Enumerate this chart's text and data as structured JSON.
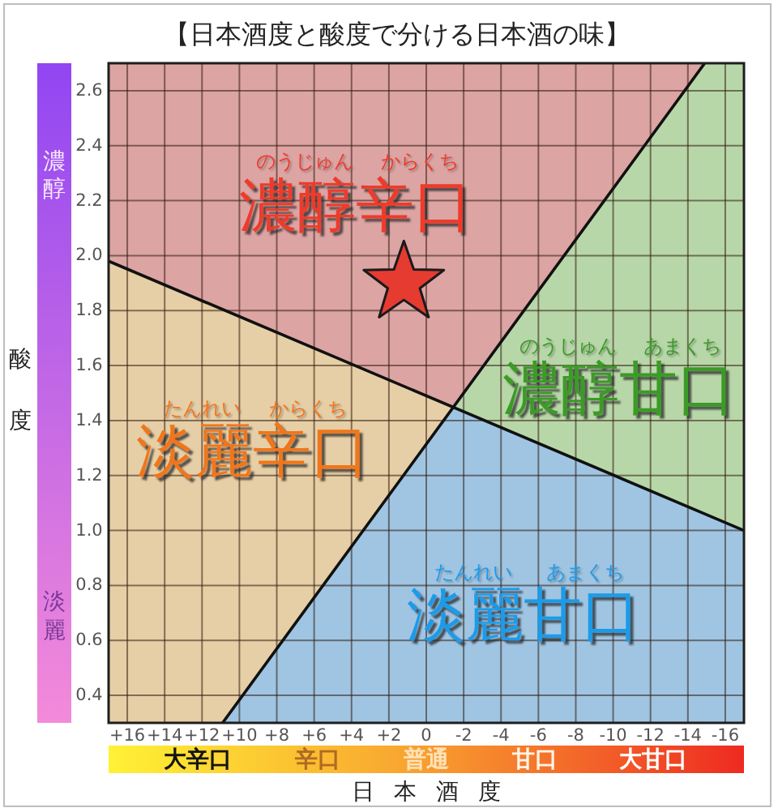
{
  "chart_data": {
    "type": "line",
    "title": "【日本酒度と酸度で分ける日本酒の味】",
    "xlabel": "日本酒度",
    "ylabel": "酸度",
    "xlim": [
      17,
      -17
    ],
    "xticks": [
      {
        "value": 16,
        "label": "+16"
      },
      {
        "value": 14,
        "label": "+14"
      },
      {
        "value": 12,
        "label": "+12"
      },
      {
        "value": 10,
        "label": "+10"
      },
      {
        "value": 8,
        "label": "+8"
      },
      {
        "value": 6,
        "label": "+6"
      },
      {
        "value": 4,
        "label": "+4"
      },
      {
        "value": 2,
        "label": "+2"
      },
      0,
      -2,
      -4,
      -6,
      -8,
      -10,
      -12,
      -14,
      -16
    ],
    "ylim": [
      0.3,
      2.7
    ],
    "yticks": [
      0.4,
      0.6,
      0.8,
      {
        "value": 1,
        "label": "1.0"
      },
      1.2,
      1.4,
      1.6,
      1.8,
      {
        "value": 2,
        "label": "2.0"
      },
      2.2,
      2.4,
      2.6
    ],
    "grid": true,
    "series": [
      {
        "color": "#111111",
        "x": [
          17,
          -17
        ],
        "values": [
          1.98,
          1.0
        ]
      },
      {
        "color": "#111111",
        "x": [
          10.9,
          -14.9
        ],
        "values": [
          0.3,
          2.7
        ]
      },
      {
        "type": "scatter",
        "color": "#e63b30",
        "marker": "star",
        "x": [
          1.2
        ],
        "values": [
          1.9
        ]
      }
    ],
    "annotations": [
      "濃醇辛口",
      "のうじゅん",
      "からくち",
      "淡麗辛口",
      "たんれい",
      "からくち",
      "濃醇甘口",
      "のうじゅん",
      "あまくち",
      "淡麗甘口",
      "たんれい",
      "あまくち",
      "濃醇",
      "淡麗",
      "大辛口",
      "辛口",
      "普通",
      "甘口",
      "大甘口"
    ]
  }
}
